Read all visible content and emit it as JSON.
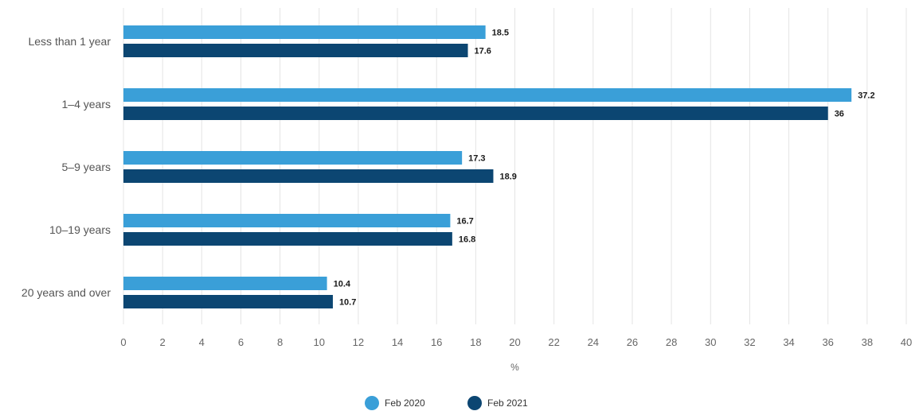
{
  "chart_data": {
    "type": "bar",
    "orientation": "horizontal",
    "categories": [
      "Less than 1 year",
      "1–4 years",
      "5–9 years",
      "10–19 years",
      "20 years and over"
    ],
    "series": [
      {
        "name": "Feb 2020",
        "values": [
          18.5,
          37.2,
          17.3,
          16.7,
          10.4
        ],
        "color": "#3a9fd8"
      },
      {
        "name": "Feb 2021",
        "values": [
          17.6,
          36,
          18.9,
          16.8,
          10.7
        ],
        "color": "#0c4672"
      }
    ],
    "value_labels": [
      [
        "18.5",
        "37.2",
        "17.3",
        "16.7",
        "10.4"
      ],
      [
        "17.6",
        "36",
        "18.9",
        "16.8",
        "10.7"
      ]
    ],
    "title": "",
    "xlabel": "%",
    "ylabel": "",
    "xlim": [
      0,
      40
    ],
    "xticks": [
      0,
      2,
      4,
      6,
      8,
      10,
      12,
      14,
      16,
      18,
      20,
      22,
      24,
      26,
      28,
      30,
      32,
      34,
      36,
      38,
      40
    ],
    "grid": true,
    "legend_position": "bottom-center"
  }
}
